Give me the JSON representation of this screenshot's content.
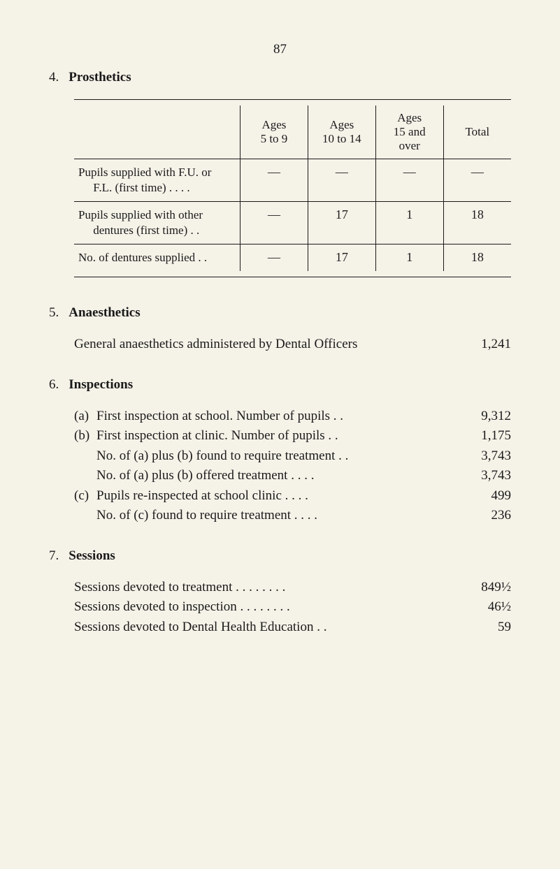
{
  "page": {
    "number": "87"
  },
  "prosthetics": {
    "section_num": "4.",
    "title": "Prosthetics",
    "table": {
      "headers": {
        "col1": "",
        "col2_line1": "Ages",
        "col2_line2": "5 to 9",
        "col3_line1": "Ages",
        "col3_line2": "10 to 14",
        "col4_line1": "Ages",
        "col4_line2": "15 and",
        "col4_line3": "over",
        "col5": "Total"
      },
      "rows": [
        {
          "label_line1": "Pupils supplied with F.U. or",
          "label_line2": "F.L. (first time) . .   . .",
          "c1": "—",
          "c2": "—",
          "c3": "—",
          "c4": "—"
        },
        {
          "label_line1": "Pupils supplied with other",
          "label_line2": "dentures (first time)  . .",
          "c1": "—",
          "c2": "17",
          "c3": "1",
          "c4": "18"
        },
        {
          "label_line1": "No. of dentures supplied  . .",
          "label_line2": "",
          "c1": "—",
          "c2": "17",
          "c3": "1",
          "c4": "18"
        }
      ]
    }
  },
  "anaesthetics": {
    "section_num": "5.",
    "title": "Anaesthetics",
    "line_label": "General anaesthetics administered by Dental Officers",
    "line_value": "1,241"
  },
  "inspections": {
    "section_num": "6.",
    "title": "Inspections",
    "items": [
      {
        "marker": "(a)",
        "label": "First inspection at school. Number of pupils  . .",
        "value": "9,312"
      },
      {
        "marker": "(b)",
        "label": "First inspection at clinic. Number of pupils   . .",
        "value": "1,175"
      },
      {
        "marker": "",
        "label": "No. of (a) plus (b) found to require treatment . .",
        "value": "3,743"
      },
      {
        "marker": "",
        "label": "No. of (a) plus (b) offered treatment    . .   . .",
        "value": "3,743"
      },
      {
        "marker": "(c)",
        "label": "Pupils re-inspected at school clinic     . .   . .",
        "value": "499"
      },
      {
        "marker": "",
        "label": "No. of (c) found to require treatment    . .   . .",
        "value": "236"
      }
    ]
  },
  "sessions": {
    "section_num": "7.",
    "title": "Sessions",
    "items": [
      {
        "label": "Sessions devoted to treatment . .   . .   . .   . .",
        "value": "849½"
      },
      {
        "label": "Sessions devoted to inspection . .   . .   . .   . .",
        "value": "46½"
      },
      {
        "label": "Sessions devoted to Dental Health Education    . .",
        "value": "59"
      }
    ]
  }
}
